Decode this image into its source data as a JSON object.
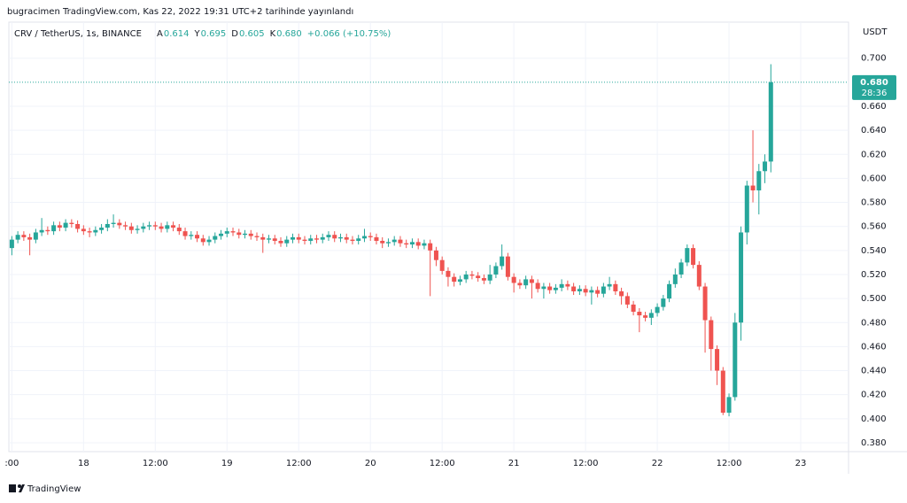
{
  "header": {
    "publisher": "bugracimen TradingView.com, Kas 22, 2022 19:31 UTC+2 tarihinde yayınlandı",
    "symbol": "CRV / TetherUS, 1s, BINANCE",
    "ohlc": [
      {
        "label": "A",
        "value": "0.614"
      },
      {
        "label": "Y",
        "value": "0.695"
      },
      {
        "label": "D",
        "value": "0.605"
      },
      {
        "label": "K",
        "value": "0.680"
      }
    ],
    "change": "+0.066 (+10.75%)"
  },
  "footer": {
    "brand": "TradingView"
  },
  "chart_data": {
    "type": "candlestick",
    "y_axis_label": "USDT",
    "up_color": "#26a69a",
    "down_color": "#ef5350",
    "grid": true,
    "xlim": [
      11.5,
      152
    ],
    "ylim": [
      0.3726,
      0.73
    ],
    "xticks": [
      {
        "value": 12,
        "label": ":00"
      },
      {
        "value": 24,
        "label": "18"
      },
      {
        "value": 36,
        "label": "12:00"
      },
      {
        "value": 48,
        "label": "19"
      },
      {
        "value": 60,
        "label": "12:00"
      },
      {
        "value": 72,
        "label": "20"
      },
      {
        "value": 84,
        "label": "12:00"
      },
      {
        "value": 96,
        "label": "21"
      },
      {
        "value": 108,
        "label": "12:00"
      },
      {
        "value": 120,
        "label": "22"
      },
      {
        "value": 132,
        "label": "12:00"
      },
      {
        "value": 144,
        "label": "23"
      }
    ],
    "yticks": [
      {
        "value": 0.38,
        "label": "0.380"
      },
      {
        "value": 0.4,
        "label": "0.400"
      },
      {
        "value": 0.42,
        "label": "0.420"
      },
      {
        "value": 0.44,
        "label": "0.440"
      },
      {
        "value": 0.46,
        "label": "0.460"
      },
      {
        "value": 0.48,
        "label": "0.480"
      },
      {
        "value": 0.5,
        "label": "0.500"
      },
      {
        "value": 0.52,
        "label": "0.520"
      },
      {
        "value": 0.54,
        "label": "0.540"
      },
      {
        "value": 0.56,
        "label": "0.560"
      },
      {
        "value": 0.58,
        "label": "0.580"
      },
      {
        "value": 0.6,
        "label": "0.600"
      },
      {
        "value": 0.62,
        "label": "0.620"
      },
      {
        "value": 0.64,
        "label": "0.640"
      },
      {
        "value": 0.66,
        "label": "0.660"
      },
      {
        "value": 0.7,
        "label": "0.700"
      }
    ],
    "last_price": {
      "value": 0.68,
      "label": "0.680",
      "countdown": "28:36"
    },
    "x": [
      12,
      13,
      14,
      15,
      16,
      17,
      18,
      19,
      20,
      21,
      22,
      23,
      24,
      25,
      26,
      27,
      28,
      29,
      30,
      31,
      32,
      33,
      34,
      35,
      36,
      37,
      38,
      39,
      40,
      41,
      42,
      43,
      44,
      45,
      46,
      47,
      48,
      49,
      50,
      51,
      52,
      53,
      54,
      55,
      56,
      57,
      58,
      59,
      60,
      61,
      62,
      63,
      64,
      65,
      66,
      67,
      68,
      69,
      70,
      71,
      72,
      73,
      74,
      75,
      76,
      77,
      78,
      79,
      80,
      81,
      82,
      83,
      84,
      85,
      86,
      87,
      88,
      89,
      90,
      91,
      92,
      93,
      94,
      95,
      96,
      97,
      98,
      99,
      100,
      101,
      102,
      103,
      104,
      105,
      106,
      107,
      108,
      109,
      110,
      111,
      112,
      113,
      114,
      115,
      116,
      117,
      118,
      119,
      120,
      121,
      122,
      123,
      124,
      125,
      126,
      127,
      128,
      129,
      130,
      131,
      132,
      133,
      134,
      135,
      136,
      137,
      138,
      139
    ],
    "open": [
      0.542,
      0.549,
      0.553,
      0.551,
      0.549,
      0.555,
      0.557,
      0.556,
      0.561,
      0.559,
      0.563,
      0.562,
      0.558,
      0.556,
      0.555,
      0.557,
      0.559,
      0.562,
      0.563,
      0.561,
      0.56,
      0.557,
      0.558,
      0.56,
      0.561,
      0.56,
      0.558,
      0.561,
      0.559,
      0.556,
      0.552,
      0.553,
      0.55,
      0.547,
      0.549,
      0.552,
      0.554,
      0.556,
      0.555,
      0.553,
      0.554,
      0.552,
      0.551,
      0.549,
      0.55,
      0.548,
      0.546,
      0.549,
      0.551,
      0.549,
      0.548,
      0.55,
      0.549,
      0.551,
      0.553,
      0.55,
      0.551,
      0.549,
      0.548,
      0.55,
      0.552,
      0.551,
      0.548,
      0.546,
      0.547,
      0.549,
      0.546,
      0.545,
      0.547,
      0.544,
      0.546,
      0.54,
      0.532,
      0.523,
      0.518,
      0.514,
      0.516,
      0.52,
      0.519,
      0.517,
      0.515,
      0.52,
      0.527,
      0.535,
      0.518,
      0.513,
      0.511,
      0.516,
      0.513,
      0.508,
      0.51,
      0.507,
      0.509,
      0.512,
      0.51,
      0.506,
      0.508,
      0.505,
      0.507,
      0.504,
      0.51,
      0.512,
      0.506,
      0.502,
      0.495,
      0.489,
      0.486,
      0.484,
      0.488,
      0.493,
      0.5,
      0.512,
      0.52,
      0.53,
      0.542,
      0.528,
      0.51,
      0.482,
      0.458,
      0.44,
      0.405,
      0.418,
      0.48,
      0.555,
      0.594,
      0.59,
      0.606,
      0.614
    ],
    "high": [
      0.552,
      0.556,
      0.556,
      0.554,
      0.558,
      0.567,
      0.56,
      0.564,
      0.564,
      0.566,
      0.566,
      0.565,
      0.561,
      0.559,
      0.56,
      0.562,
      0.566,
      0.57,
      0.566,
      0.564,
      0.563,
      0.561,
      0.563,
      0.564,
      0.564,
      0.563,
      0.564,
      0.564,
      0.562,
      0.559,
      0.556,
      0.556,
      0.553,
      0.552,
      0.555,
      0.557,
      0.559,
      0.559,
      0.558,
      0.557,
      0.557,
      0.555,
      0.554,
      0.553,
      0.553,
      0.551,
      0.552,
      0.554,
      0.554,
      0.552,
      0.553,
      0.553,
      0.554,
      0.556,
      0.556,
      0.554,
      0.554,
      0.552,
      0.553,
      0.558,
      0.555,
      0.554,
      0.551,
      0.55,
      0.552,
      0.552,
      0.549,
      0.55,
      0.55,
      0.549,
      0.549,
      0.543,
      0.535,
      0.526,
      0.521,
      0.519,
      0.523,
      0.523,
      0.522,
      0.52,
      0.528,
      0.53,
      0.545,
      0.538,
      0.521,
      0.516,
      0.519,
      0.519,
      0.516,
      0.513,
      0.513,
      0.512,
      0.516,
      0.515,
      0.513,
      0.511,
      0.511,
      0.51,
      0.51,
      0.513,
      0.518,
      0.515,
      0.509,
      0.505,
      0.498,
      0.492,
      0.489,
      0.491,
      0.496,
      0.503,
      0.515,
      0.525,
      0.533,
      0.545,
      0.545,
      0.531,
      0.513,
      0.485,
      0.461,
      0.443,
      0.421,
      0.488,
      0.56,
      0.598,
      0.64,
      0.612,
      0.62,
      0.695
    ],
    "low": [
      0.536,
      0.546,
      0.548,
      0.536,
      0.546,
      0.552,
      0.553,
      0.553,
      0.556,
      0.556,
      0.559,
      0.555,
      0.553,
      0.551,
      0.552,
      0.554,
      0.556,
      0.559,
      0.558,
      0.557,
      0.554,
      0.554,
      0.555,
      0.557,
      0.557,
      0.555,
      0.555,
      0.556,
      0.553,
      0.549,
      0.549,
      0.547,
      0.544,
      0.544,
      0.546,
      0.549,
      0.551,
      0.552,
      0.55,
      0.55,
      0.549,
      0.548,
      0.538,
      0.546,
      0.545,
      0.543,
      0.543,
      0.546,
      0.546,
      0.545,
      0.545,
      0.546,
      0.546,
      0.548,
      0.547,
      0.547,
      0.546,
      0.545,
      0.545,
      0.547,
      0.548,
      0.545,
      0.542,
      0.543,
      0.544,
      0.543,
      0.542,
      0.542,
      0.541,
      0.541,
      0.502,
      0.527,
      0.52,
      0.51,
      0.51,
      0.511,
      0.513,
      0.516,
      0.514,
      0.512,
      0.512,
      0.517,
      0.524,
      0.515,
      0.505,
      0.508,
      0.508,
      0.5,
      0.505,
      0.5,
      0.504,
      0.504,
      0.506,
      0.507,
      0.503,
      0.503,
      0.502,
      0.495,
      0.501,
      0.501,
      0.507,
      0.503,
      0.495,
      0.492,
      0.486,
      0.472,
      0.481,
      0.478,
      0.485,
      0.49,
      0.497,
      0.509,
      0.517,
      0.527,
      0.525,
      0.507,
      0.455,
      0.44,
      0.428,
      0.403,
      0.402,
      0.415,
      0.465,
      0.545,
      0.58,
      0.57,
      0.596,
      0.605
    ],
    "close": [
      0.549,
      0.553,
      0.551,
      0.549,
      0.555,
      0.557,
      0.556,
      0.561,
      0.559,
      0.563,
      0.562,
      0.558,
      0.556,
      0.555,
      0.557,
      0.559,
      0.562,
      0.563,
      0.561,
      0.56,
      0.557,
      0.558,
      0.56,
      0.561,
      0.56,
      0.558,
      0.561,
      0.559,
      0.556,
      0.552,
      0.553,
      0.55,
      0.547,
      0.549,
      0.552,
      0.554,
      0.556,
      0.555,
      0.553,
      0.554,
      0.552,
      0.551,
      0.549,
      0.55,
      0.548,
      0.546,
      0.549,
      0.551,
      0.549,
      0.548,
      0.55,
      0.549,
      0.551,
      0.553,
      0.55,
      0.551,
      0.549,
      0.548,
      0.55,
      0.552,
      0.551,
      0.548,
      0.546,
      0.547,
      0.549,
      0.546,
      0.545,
      0.547,
      0.544,
      0.546,
      0.54,
      0.532,
      0.523,
      0.518,
      0.514,
      0.516,
      0.52,
      0.519,
      0.517,
      0.515,
      0.52,
      0.527,
      0.535,
      0.518,
      0.513,
      0.511,
      0.516,
      0.513,
      0.508,
      0.51,
      0.507,
      0.509,
      0.512,
      0.51,
      0.506,
      0.508,
      0.505,
      0.507,
      0.504,
      0.51,
      0.512,
      0.506,
      0.502,
      0.495,
      0.489,
      0.486,
      0.484,
      0.488,
      0.493,
      0.5,
      0.512,
      0.52,
      0.53,
      0.542,
      0.528,
      0.51,
      0.482,
      0.458,
      0.44,
      0.405,
      0.418,
      0.48,
      0.555,
      0.594,
      0.59,
      0.606,
      0.614,
      0.68
    ]
  }
}
